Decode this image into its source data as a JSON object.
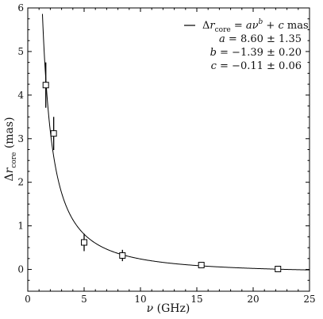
{
  "chart_data": {
    "type": "scatter",
    "xlabel": "ν (GHz)",
    "ylabel": "Δr_core (mas)",
    "xlim": [
      0,
      25
    ],
    "ylim": [
      -0.5,
      6
    ],
    "xticks": [
      "0",
      "5",
      "10",
      "15",
      "20",
      "25"
    ],
    "yticks": [
      "0",
      "1",
      "2",
      "3",
      "4",
      "5",
      "6"
    ],
    "grid": false,
    "legend_position": "top-right",
    "legend": {
      "line_label": "Δr_core = aν^b + c mas",
      "params": [
        "a = 8.60 ± 1.35",
        "b = −1.39 ± 0.20",
        "c = −0.11 ± 0.06"
      ]
    },
    "points": [
      {
        "x": 1.6,
        "y": 4.23,
        "err": 0.52
      },
      {
        "x": 2.3,
        "y": 3.12,
        "err": 0.38
      },
      {
        "x": 5.0,
        "y": 0.62,
        "err": 0.2
      },
      {
        "x": 8.4,
        "y": 0.32,
        "err": 0.13
      },
      {
        "x": 15.4,
        "y": 0.1,
        "err": 0.04
      },
      {
        "x": 22.2,
        "y": 0.01,
        "err": 0.02
      }
    ],
    "fit": {
      "a": 8.6,
      "b": -1.39,
      "c": -0.11
    }
  }
}
